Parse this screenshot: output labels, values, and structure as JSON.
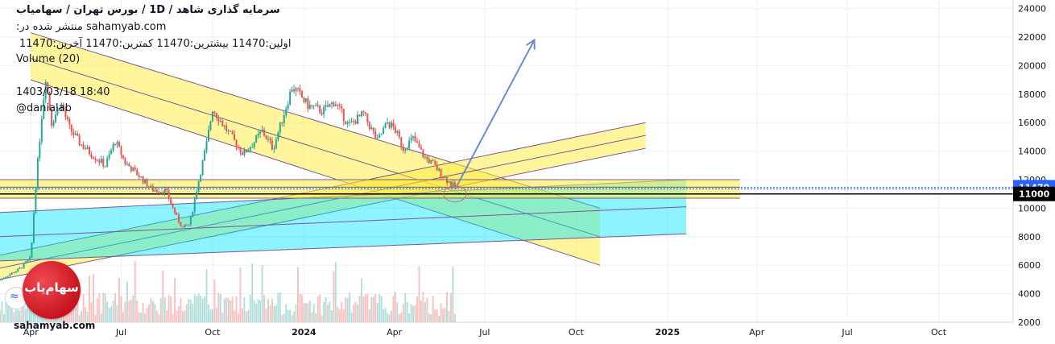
{
  "header": {
    "title": "سرمایه گذاری شاهد / 1D / بورس تهران / سهامیاب",
    "published": "sahamyab.com منتشر شده در:",
    "ohlc": "اولین:11470 بیشترین:11470 کمترین:11470 آخرین:11470",
    "volume": "Volume (20)",
    "date": "1403/03/18 18:40",
    "author": "@danialab"
  },
  "watermark": {
    "text": "sahamyab.com",
    "logo_text": "سهام‌یاب",
    "tv_glyph": "≈"
  },
  "chart_data": {
    "type": "candlestick",
    "title": "",
    "xlabel": "",
    "ylabel": "",
    "x_ticks": [
      "Apr",
      "Jul",
      "Oct",
      "2024",
      "Apr",
      "Jul",
      "Oct",
      "2025",
      "Apr",
      "Jul",
      "Oct"
    ],
    "x_tick_dates": [
      "2023-04-01",
      "2023-07-01",
      "2023-10-01",
      "2024-01-01",
      "2024-04-01",
      "2024-07-01",
      "2024-10-01",
      "2025-01-01",
      "2025-04-01",
      "2025-07-01",
      "2025-10-01"
    ],
    "x_range": [
      "2023-03-01",
      "2025-12-15"
    ],
    "y_ticks": [
      2000,
      4000,
      6000,
      8000,
      10000,
      12000,
      14000,
      16000,
      18000,
      20000,
      22000,
      24000
    ],
    "ylim": [
      2000,
      24600
    ],
    "price_labels": [
      {
        "value": 11470,
        "text": "11470",
        "color": "#2962ff"
      },
      {
        "value": 11000,
        "text": "11000",
        "color": "#000000"
      }
    ],
    "candles_close_path": [
      [
        "2023-03-01",
        5000
      ],
      [
        "2023-03-20",
        5700
      ],
      [
        "2023-04-01",
        6500
      ],
      [
        "2023-04-05",
        10800
      ],
      [
        "2023-04-12",
        16500
      ],
      [
        "2023-04-16",
        19200
      ],
      [
        "2023-04-22",
        16000
      ],
      [
        "2023-05-01",
        17400
      ],
      [
        "2023-05-10",
        15600
      ],
      [
        "2023-05-20",
        14600
      ],
      [
        "2023-06-01",
        13800
      ],
      [
        "2023-06-15",
        13000
      ],
      [
        "2023-06-25",
        14700
      ],
      [
        "2023-07-05",
        13200
      ],
      [
        "2023-07-20",
        12200
      ],
      [
        "2023-08-01",
        11300
      ],
      [
        "2023-08-15",
        11200
      ],
      [
        "2023-08-25",
        9500
      ],
      [
        "2023-09-01",
        8600
      ],
      [
        "2023-09-08",
        8900
      ],
      [
        "2023-09-15",
        11300
      ],
      [
        "2023-09-25",
        14500
      ],
      [
        "2023-10-01",
        17000
      ],
      [
        "2023-10-10",
        16000
      ],
      [
        "2023-10-20",
        15000
      ],
      [
        "2023-11-01",
        13800
      ],
      [
        "2023-11-10",
        14500
      ],
      [
        "2023-11-20",
        15400
      ],
      [
        "2023-12-01",
        14200
      ],
      [
        "2023-12-10",
        16200
      ],
      [
        "2023-12-20",
        18500
      ],
      [
        "2023-12-25",
        18200
      ],
      [
        "2024-01-05",
        17200
      ],
      [
        "2024-01-20",
        16800
      ],
      [
        "2024-02-01",
        17500
      ],
      [
        "2024-02-15",
        15800
      ],
      [
        "2024-03-01",
        16600
      ],
      [
        "2024-03-15",
        14700
      ],
      [
        "2024-03-25",
        16000
      ],
      [
        "2024-04-01",
        15600
      ],
      [
        "2024-04-10",
        14200
      ],
      [
        "2024-04-20",
        14900
      ],
      [
        "2024-05-01",
        13600
      ],
      [
        "2024-05-10",
        13100
      ],
      [
        "2024-05-18",
        12400
      ],
      [
        "2024-05-25",
        11900
      ],
      [
        "2024-06-01",
        11470
      ]
    ],
    "channels": [
      {
        "name": "",
        "color": "#ffeb3b",
        "alpha": 0.5,
        "type": "falling-channel",
        "upper": [
          [
            "2023-04-01",
            22300
          ],
          [
            "2024-10-25",
            10000
          ]
        ],
        "mid": [
          [
            "2023-04-01",
            20500
          ],
          [
            "2024-10-25",
            8000
          ]
        ],
        "lower": [
          [
            "2023-04-01",
            19000
          ],
          [
            "2024-10-25",
            6000
          ]
        ]
      },
      {
        "name": "",
        "color": "#ffeb3b",
        "alpha": 0.5,
        "type": "rising-channel",
        "upper": [
          [
            "2023-03-01",
            6700
          ],
          [
            "2024-12-10",
            16000
          ]
        ],
        "mid": [
          [
            "2023-03-01",
            5800
          ],
          [
            "2024-12-10",
            15100
          ]
        ],
        "lower": [
          [
            "2023-03-01",
            5000
          ],
          [
            "2024-12-10",
            14200
          ]
        ]
      },
      {
        "name": "",
        "color": "#00e5ff",
        "alpha": 0.45,
        "type": "rising-channel",
        "upper": [
          [
            "2023-03-01",
            9700
          ],
          [
            "2025-01-20",
            12000
          ]
        ],
        "mid": [
          [
            "2023-03-01",
            8000
          ],
          [
            "2025-01-20",
            10100
          ]
        ],
        "lower": [
          [
            "2023-03-01",
            6300
          ],
          [
            "2025-01-20",
            8200
          ]
        ]
      },
      {
        "name": "",
        "color": "#ffeb3b",
        "alpha": 0.55,
        "type": "horizontal-zone",
        "upper": [
          [
            "2023-03-01",
            12000
          ],
          [
            "2025-03-15",
            12000
          ]
        ],
        "mid": [
          [
            "2023-03-01",
            11470
          ],
          [
            "2025-03-15",
            11470
          ]
        ],
        "lower": [
          [
            "2023-03-01",
            10700
          ],
          [
            "2025-03-15",
            10700
          ]
        ]
      }
    ],
    "horizontal_lines": [
      11470,
      11350,
      11000
    ],
    "arrow": {
      "from": [
        "2024-06-01",
        11300
      ],
      "to": [
        "2024-08-20",
        21800
      ],
      "color": "#6a8ccc"
    }
  }
}
